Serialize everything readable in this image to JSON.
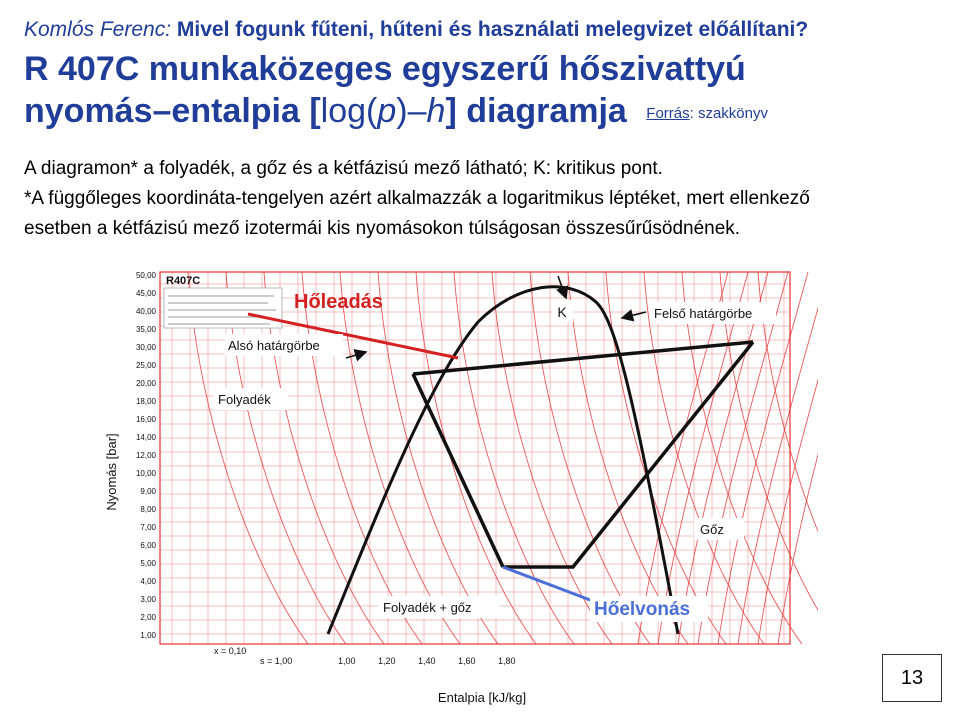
{
  "header": {
    "author": "Komlós Ferenc",
    "separator": ":",
    "question": "Mivel fogunk fűteni, hűteni és használati melegvizet előállítani?"
  },
  "title": {
    "line1": "R 407C munkaközeges egyszerű hőszivattyú",
    "line2_a": "nyomás–entalpia [",
    "line2_b": "log(",
    "line2_p": "p",
    "line2_c": ")–",
    "line2_h": "h",
    "line2_d": "] diagramja",
    "source_label": "Forrás",
    "source_value": ": szakkönyv"
  },
  "body": {
    "line1": "A diagramon* a folyadék, a gőz és a kétfázisú mező látható; K: kritikus pont.",
    "line2": "*A függőleges koordináta-tengelyen azért alkalmazzák a logaritmikus léptéket, mert ellenkező",
    "line3": "esetben a kétfázisú mező izotermái kis nyomásokon túlságosan összesűrűsödnének."
  },
  "diagram": {
    "refrigerant_label": "R407C",
    "y_axis_label": "Nyomás [bar]",
    "x_axis_label": "Entalpia [kJ/kg]",
    "y_ticks": [
      "50,00",
      "45,00",
      "40,00",
      "35,00",
      "30,00",
      "25,00",
      "20,00",
      "18,00",
      "16,00",
      "14,00",
      "12,00",
      "10,00",
      "9,00",
      "8,00",
      "7,00",
      "6,00",
      "5,00",
      "4,00",
      "3,00",
      "2,00",
      "1,00"
    ],
    "x_ticks": [
      "1,00",
      "1,20",
      "1,40",
      "1,60",
      "1,80"
    ],
    "x_tick_prefix": "x = 0,10",
    "s_label": "s = 1,00",
    "labels": {
      "critical_point": "K",
      "heat_release": "Hőleadás",
      "lower_boundary": "Alsó határgörbe",
      "upper_boundary": "Felső határgörbe",
      "liquid": "Folyadék",
      "vapor": "Gőz",
      "two_phase": "Folyadék + gőz",
      "heat_absorption": "Hőelvonás"
    },
    "colors": {
      "grid": "#e53030",
      "cycle": "#111111",
      "heat_release": "#d42020",
      "heat_absorption": "#4a6fd8"
    }
  },
  "page_number": "13"
}
